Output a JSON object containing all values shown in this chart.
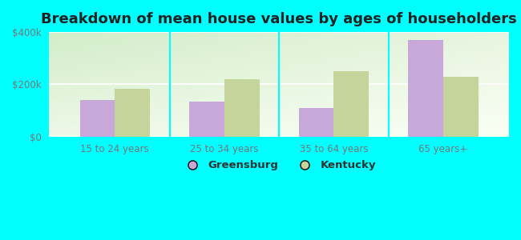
{
  "title": "Breakdown of mean house values by ages of householders",
  "categories": [
    "15 to 24 years",
    "25 to 34 years",
    "35 to 64 years",
    "65 years+"
  ],
  "greensburg_values": [
    140000,
    135000,
    110000,
    370000
  ],
  "kentucky_values": [
    182000,
    218000,
    250000,
    228000
  ],
  "greensburg_color": "#c8a8d8",
  "kentucky_color": "#c5d49a",
  "background_color": "#00ffff",
  "ylim": [
    0,
    400000
  ],
  "yticks": [
    0,
    200000,
    400000
  ],
  "ytick_labels": [
    "$0",
    "$200k",
    "$400k"
  ],
  "bar_width": 0.32,
  "legend_labels": [
    "Greensburg",
    "Kentucky"
  ],
  "title_fontsize": 13,
  "tick_fontsize": 8.5,
  "legend_fontsize": 9.5
}
